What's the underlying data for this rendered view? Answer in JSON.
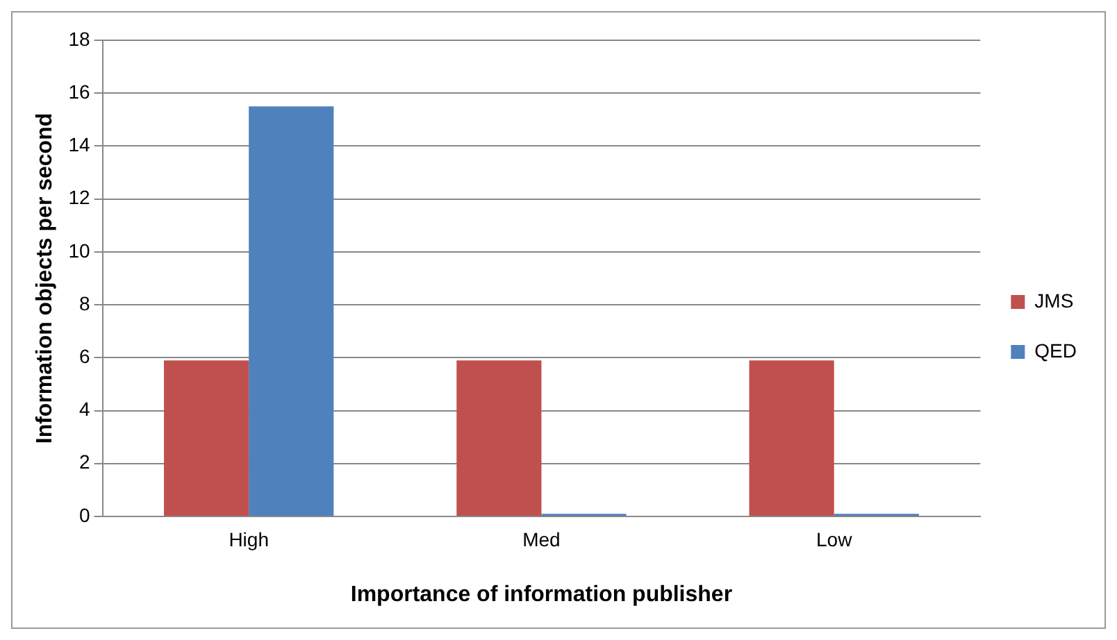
{
  "chart_data": {
    "type": "bar",
    "xlabel": "Importance of information publisher",
    "ylabel": "Information objects per second",
    "categories": [
      "High",
      "Med",
      "Low"
    ],
    "series": [
      {
        "name": "JMS",
        "color": "#c0504d",
        "values": [
          5.9,
          5.9,
          5.9
        ]
      },
      {
        "name": "QED",
        "color": "#4f81bd",
        "values": [
          15.5,
          0.1,
          0.1
        ]
      }
    ],
    "ylim": [
      0,
      18
    ],
    "yticks": [
      0,
      2,
      4,
      6,
      8,
      10,
      12,
      14,
      16,
      18
    ],
    "grid": "y",
    "legend": "right"
  }
}
